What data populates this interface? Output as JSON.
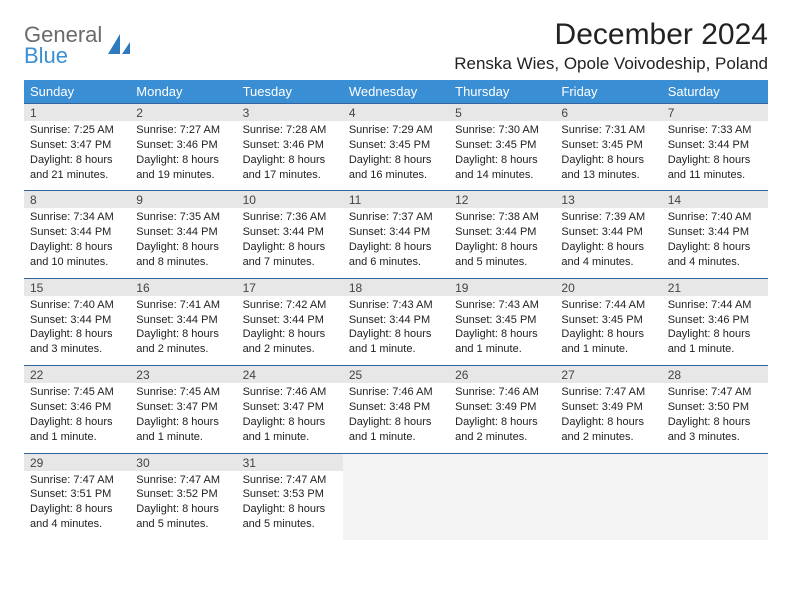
{
  "logo": {
    "top": "General",
    "bottom": "Blue"
  },
  "title": "December 2024",
  "location": "Renska Wies, Opole Voivodeship, Poland",
  "colors": {
    "header_bg": "#3a8fd4",
    "header_text": "#ffffff",
    "daynum_bg": "#e7e7e7",
    "border_top": "#3264a0",
    "text": "#222222"
  },
  "day_headers": [
    "Sunday",
    "Monday",
    "Tuesday",
    "Wednesday",
    "Thursday",
    "Friday",
    "Saturday"
  ],
  "weeks": [
    {
      "nums": [
        "1",
        "2",
        "3",
        "4",
        "5",
        "6",
        "7"
      ],
      "cells": [
        {
          "sunrise": "Sunrise: 7:25 AM",
          "sunset": "Sunset: 3:47 PM",
          "day1": "Daylight: 8 hours",
          "day2": "and 21 minutes."
        },
        {
          "sunrise": "Sunrise: 7:27 AM",
          "sunset": "Sunset: 3:46 PM",
          "day1": "Daylight: 8 hours",
          "day2": "and 19 minutes."
        },
        {
          "sunrise": "Sunrise: 7:28 AM",
          "sunset": "Sunset: 3:46 PM",
          "day1": "Daylight: 8 hours",
          "day2": "and 17 minutes."
        },
        {
          "sunrise": "Sunrise: 7:29 AM",
          "sunset": "Sunset: 3:45 PM",
          "day1": "Daylight: 8 hours",
          "day2": "and 16 minutes."
        },
        {
          "sunrise": "Sunrise: 7:30 AM",
          "sunset": "Sunset: 3:45 PM",
          "day1": "Daylight: 8 hours",
          "day2": "and 14 minutes."
        },
        {
          "sunrise": "Sunrise: 7:31 AM",
          "sunset": "Sunset: 3:45 PM",
          "day1": "Daylight: 8 hours",
          "day2": "and 13 minutes."
        },
        {
          "sunrise": "Sunrise: 7:33 AM",
          "sunset": "Sunset: 3:44 PM",
          "day1": "Daylight: 8 hours",
          "day2": "and 11 minutes."
        }
      ]
    },
    {
      "nums": [
        "8",
        "9",
        "10",
        "11",
        "12",
        "13",
        "14"
      ],
      "cells": [
        {
          "sunrise": "Sunrise: 7:34 AM",
          "sunset": "Sunset: 3:44 PM",
          "day1": "Daylight: 8 hours",
          "day2": "and 10 minutes."
        },
        {
          "sunrise": "Sunrise: 7:35 AM",
          "sunset": "Sunset: 3:44 PM",
          "day1": "Daylight: 8 hours",
          "day2": "and 8 minutes."
        },
        {
          "sunrise": "Sunrise: 7:36 AM",
          "sunset": "Sunset: 3:44 PM",
          "day1": "Daylight: 8 hours",
          "day2": "and 7 minutes."
        },
        {
          "sunrise": "Sunrise: 7:37 AM",
          "sunset": "Sunset: 3:44 PM",
          "day1": "Daylight: 8 hours",
          "day2": "and 6 minutes."
        },
        {
          "sunrise": "Sunrise: 7:38 AM",
          "sunset": "Sunset: 3:44 PM",
          "day1": "Daylight: 8 hours",
          "day2": "and 5 minutes."
        },
        {
          "sunrise": "Sunrise: 7:39 AM",
          "sunset": "Sunset: 3:44 PM",
          "day1": "Daylight: 8 hours",
          "day2": "and 4 minutes."
        },
        {
          "sunrise": "Sunrise: 7:40 AM",
          "sunset": "Sunset: 3:44 PM",
          "day1": "Daylight: 8 hours",
          "day2": "and 4 minutes."
        }
      ]
    },
    {
      "nums": [
        "15",
        "16",
        "17",
        "18",
        "19",
        "20",
        "21"
      ],
      "cells": [
        {
          "sunrise": "Sunrise: 7:40 AM",
          "sunset": "Sunset: 3:44 PM",
          "day1": "Daylight: 8 hours",
          "day2": "and 3 minutes."
        },
        {
          "sunrise": "Sunrise: 7:41 AM",
          "sunset": "Sunset: 3:44 PM",
          "day1": "Daylight: 8 hours",
          "day2": "and 2 minutes."
        },
        {
          "sunrise": "Sunrise: 7:42 AM",
          "sunset": "Sunset: 3:44 PM",
          "day1": "Daylight: 8 hours",
          "day2": "and 2 minutes."
        },
        {
          "sunrise": "Sunrise: 7:43 AM",
          "sunset": "Sunset: 3:44 PM",
          "day1": "Daylight: 8 hours",
          "day2": "and 1 minute."
        },
        {
          "sunrise": "Sunrise: 7:43 AM",
          "sunset": "Sunset: 3:45 PM",
          "day1": "Daylight: 8 hours",
          "day2": "and 1 minute."
        },
        {
          "sunrise": "Sunrise: 7:44 AM",
          "sunset": "Sunset: 3:45 PM",
          "day1": "Daylight: 8 hours",
          "day2": "and 1 minute."
        },
        {
          "sunrise": "Sunrise: 7:44 AM",
          "sunset": "Sunset: 3:46 PM",
          "day1": "Daylight: 8 hours",
          "day2": "and 1 minute."
        }
      ]
    },
    {
      "nums": [
        "22",
        "23",
        "24",
        "25",
        "26",
        "27",
        "28"
      ],
      "cells": [
        {
          "sunrise": "Sunrise: 7:45 AM",
          "sunset": "Sunset: 3:46 PM",
          "day1": "Daylight: 8 hours",
          "day2": "and 1 minute."
        },
        {
          "sunrise": "Sunrise: 7:45 AM",
          "sunset": "Sunset: 3:47 PM",
          "day1": "Daylight: 8 hours",
          "day2": "and 1 minute."
        },
        {
          "sunrise": "Sunrise: 7:46 AM",
          "sunset": "Sunset: 3:47 PM",
          "day1": "Daylight: 8 hours",
          "day2": "and 1 minute."
        },
        {
          "sunrise": "Sunrise: 7:46 AM",
          "sunset": "Sunset: 3:48 PM",
          "day1": "Daylight: 8 hours",
          "day2": "and 1 minute."
        },
        {
          "sunrise": "Sunrise: 7:46 AM",
          "sunset": "Sunset: 3:49 PM",
          "day1": "Daylight: 8 hours",
          "day2": "and 2 minutes."
        },
        {
          "sunrise": "Sunrise: 7:47 AM",
          "sunset": "Sunset: 3:49 PM",
          "day1": "Daylight: 8 hours",
          "day2": "and 2 minutes."
        },
        {
          "sunrise": "Sunrise: 7:47 AM",
          "sunset": "Sunset: 3:50 PM",
          "day1": "Daylight: 8 hours",
          "day2": "and 3 minutes."
        }
      ]
    },
    {
      "nums": [
        "29",
        "30",
        "31",
        "",
        "",
        "",
        ""
      ],
      "cells": [
        {
          "sunrise": "Sunrise: 7:47 AM",
          "sunset": "Sunset: 3:51 PM",
          "day1": "Daylight: 8 hours",
          "day2": "and 4 minutes."
        },
        {
          "sunrise": "Sunrise: 7:47 AM",
          "sunset": "Sunset: 3:52 PM",
          "day1": "Daylight: 8 hours",
          "day2": "and 5 minutes."
        },
        {
          "sunrise": "Sunrise: 7:47 AM",
          "sunset": "Sunset: 3:53 PM",
          "day1": "Daylight: 8 hours",
          "day2": "and 5 minutes."
        },
        null,
        null,
        null,
        null
      ]
    }
  ]
}
